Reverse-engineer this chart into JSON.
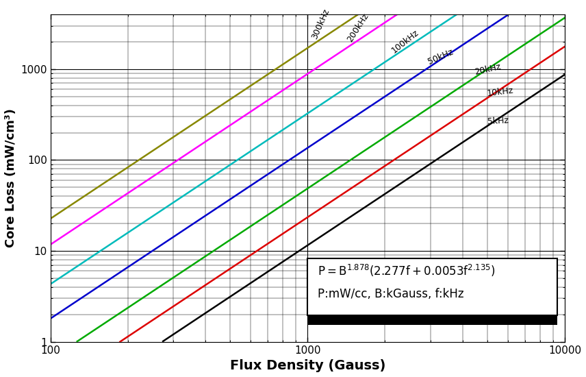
{
  "xlabel": "Flux Density (Gauss)",
  "ylabel": "Core Loss (mW/cm³)",
  "xlim": [
    100,
    10000
  ],
  "ylim": [
    1,
    4000
  ],
  "equation_alpha": 1.878,
  "equation_a": 2.277,
  "equation_b": 0.0053,
  "equation_beta": 2.135,
  "frequencies": [
    5,
    10,
    20,
    50,
    100,
    200,
    300
  ],
  "freq_colors": [
    "#000000",
    "#dd0000",
    "#00aa00",
    "#0000cc",
    "#00bbbb",
    "#ff00ff",
    "#888800"
  ],
  "freq_labels": [
    "5kHz",
    "10kHz",
    "20kHz",
    "50kHz",
    "100kHz",
    "200kHz",
    "300kHz"
  ],
  "label_x_gauss": [
    5000,
    5000,
    4500,
    3000,
    2200,
    1500,
    1100
  ],
  "xlabel_fontsize": 14,
  "ylabel_fontsize": 13,
  "tick_labelsize": 11,
  "label_fontsize": 9,
  "annot_fontsize": 12,
  "background_color": "#ffffff",
  "grid_major_color": "#000000",
  "grid_minor_color": "#000000",
  "grid_major_lw": 0.8,
  "grid_minor_lw": 0.35,
  "line_width": 1.8
}
